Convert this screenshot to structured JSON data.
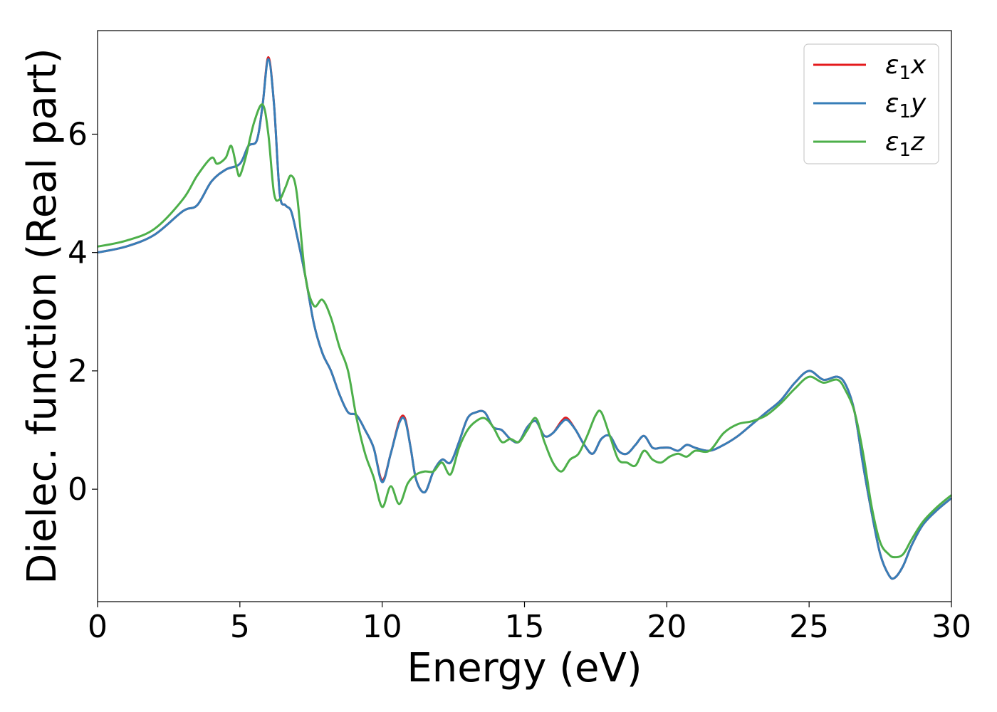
{
  "chart_data": {
    "type": "line",
    "title": "",
    "xlabel": "Energy (eV)",
    "ylabel": "Dielec. function (Real part)",
    "xlim": [
      0,
      30
    ],
    "ylim": [
      -1.9,
      7.75
    ],
    "xticks": [
      0,
      5,
      10,
      15,
      20,
      25,
      30
    ],
    "xtick_labels": [
      "0",
      "5",
      "10",
      "15",
      "20",
      "25",
      "30"
    ],
    "yticks": [
      0,
      2,
      4,
      6
    ],
    "ytick_labels": [
      "0",
      "2",
      "4",
      "6"
    ],
    "grid": false,
    "legend_position": "top-right",
    "series": [
      {
        "name": "ε₁x",
        "legend_main": "ε",
        "legend_sub": "1",
        "legend_var": "x",
        "color": "#e41a1c",
        "x": [
          0,
          1,
          2,
          3,
          3.5,
          4,
          4.5,
          5,
          5.3,
          5.6,
          5.8,
          6,
          6.2,
          6.4,
          6.6,
          6.8,
          7,
          7.3,
          7.6,
          7.9,
          8.2,
          8.5,
          8.8,
          9.1,
          9.4,
          9.7,
          10,
          10.3,
          10.6,
          10.8,
          11,
          11.2,
          11.5,
          11.8,
          12.1,
          12.4,
          12.7,
          13,
          13.3,
          13.6,
          13.9,
          14.2,
          14.5,
          14.8,
          15.1,
          15.4,
          15.7,
          16,
          16.3,
          16.5,
          16.8,
          17.1,
          17.4,
          17.7,
          18,
          18.3,
          18.6,
          18.9,
          19.2,
          19.5,
          19.8,
          20.1,
          20.4,
          20.7,
          21,
          21.5,
          22,
          22.5,
          23,
          23.5,
          24,
          24.5,
          25,
          25.5,
          26,
          26.3,
          26.6,
          26.9,
          27.2,
          27.5,
          27.8,
          28,
          28.3,
          28.6,
          29,
          29.5,
          30
        ],
        "y": [
          4.0,
          4.1,
          4.3,
          4.7,
          4.8,
          5.2,
          5.4,
          5.5,
          5.8,
          5.9,
          6.5,
          7.3,
          6.5,
          5.0,
          4.8,
          4.7,
          4.3,
          3.6,
          2.8,
          2.3,
          2.0,
          1.6,
          1.3,
          1.25,
          1.0,
          0.7,
          0.15,
          0.6,
          1.15,
          1.2,
          0.7,
          0.15,
          -0.05,
          0.3,
          0.5,
          0.45,
          0.8,
          1.2,
          1.3,
          1.3,
          1.05,
          1.0,
          0.85,
          0.8,
          1.05,
          1.15,
          0.9,
          0.95,
          1.15,
          1.2,
          1.0,
          0.75,
          0.6,
          0.85,
          0.9,
          0.65,
          0.6,
          0.75,
          0.9,
          0.7,
          0.7,
          0.7,
          0.65,
          0.75,
          0.7,
          0.65,
          0.75,
          0.9,
          1.1,
          1.3,
          1.5,
          1.8,
          2.0,
          1.85,
          1.9,
          1.75,
          1.3,
          0.4,
          -0.4,
          -1.1,
          -1.45,
          -1.5,
          -1.3,
          -0.95,
          -0.6,
          -0.35,
          -0.15
        ]
      },
      {
        "name": "ε₁y",
        "legend_main": "ε",
        "legend_sub": "1",
        "legend_var": "y",
        "color": "#377eb8",
        "x": [
          0,
          1,
          2,
          3,
          3.5,
          4,
          4.5,
          5,
          5.3,
          5.6,
          5.8,
          6,
          6.2,
          6.4,
          6.6,
          6.8,
          7,
          7.3,
          7.6,
          7.9,
          8.2,
          8.5,
          8.8,
          9.1,
          9.4,
          9.7,
          10,
          10.3,
          10.6,
          10.8,
          11,
          11.2,
          11.5,
          11.8,
          12.1,
          12.4,
          12.7,
          13,
          13.3,
          13.6,
          13.9,
          14.2,
          14.5,
          14.8,
          15.1,
          15.4,
          15.7,
          16,
          16.3,
          16.5,
          16.8,
          17.1,
          17.4,
          17.7,
          18,
          18.3,
          18.6,
          18.9,
          19.2,
          19.5,
          19.8,
          20.1,
          20.4,
          20.7,
          21,
          21.5,
          22,
          22.5,
          23,
          23.5,
          24,
          24.5,
          25,
          25.5,
          26,
          26.3,
          26.6,
          26.9,
          27.2,
          27.5,
          27.8,
          28,
          28.3,
          28.6,
          29,
          29.5,
          30
        ],
        "y": [
          4.0,
          4.1,
          4.3,
          4.7,
          4.8,
          5.2,
          5.4,
          5.5,
          5.8,
          5.9,
          6.5,
          7.27,
          6.5,
          5.0,
          4.8,
          4.7,
          4.3,
          3.6,
          2.8,
          2.3,
          2.0,
          1.6,
          1.3,
          1.25,
          1.0,
          0.7,
          0.12,
          0.6,
          1.12,
          1.17,
          0.7,
          0.15,
          -0.05,
          0.3,
          0.5,
          0.45,
          0.8,
          1.2,
          1.3,
          1.3,
          1.05,
          1.0,
          0.85,
          0.8,
          1.05,
          1.15,
          0.9,
          0.95,
          1.12,
          1.17,
          1.0,
          0.75,
          0.6,
          0.85,
          0.9,
          0.65,
          0.6,
          0.75,
          0.9,
          0.7,
          0.7,
          0.7,
          0.65,
          0.75,
          0.7,
          0.65,
          0.75,
          0.9,
          1.1,
          1.3,
          1.5,
          1.8,
          2.0,
          1.85,
          1.9,
          1.75,
          1.3,
          0.4,
          -0.4,
          -1.1,
          -1.45,
          -1.5,
          -1.3,
          -0.95,
          -0.6,
          -0.35,
          -0.15
        ]
      },
      {
        "name": "ε₁z",
        "legend_main": "ε",
        "legend_sub": "1",
        "legend_var": "z",
        "color": "#4daf4a",
        "x": [
          0,
          1,
          2,
          3,
          3.5,
          4,
          4.2,
          4.5,
          4.7,
          4.9,
          5,
          5.2,
          5.5,
          5.8,
          6,
          6.2,
          6.4,
          6.6,
          6.8,
          7,
          7.3,
          7.6,
          7.9,
          8.2,
          8.5,
          8.8,
          9.1,
          9.4,
          9.7,
          10,
          10.3,
          10.6,
          10.9,
          11.2,
          11.5,
          11.8,
          12.1,
          12.4,
          12.7,
          13,
          13.3,
          13.6,
          13.9,
          14.2,
          14.5,
          14.8,
          15.1,
          15.4,
          15.7,
          16,
          16.3,
          16.6,
          16.9,
          17.2,
          17.5,
          17.7,
          18,
          18.3,
          18.6,
          18.9,
          19.2,
          19.5,
          19.8,
          20.1,
          20.4,
          20.7,
          21,
          21.5,
          22,
          22.5,
          23,
          23.5,
          24,
          24.5,
          25,
          25.5,
          26,
          26.3,
          26.6,
          26.9,
          27.2,
          27.5,
          27.8,
          28,
          28.3,
          28.6,
          29,
          29.5,
          30
        ],
        "y": [
          4.1,
          4.2,
          4.4,
          4.9,
          5.3,
          5.6,
          5.5,
          5.6,
          5.8,
          5.4,
          5.3,
          5.6,
          6.2,
          6.5,
          6.0,
          5.0,
          4.9,
          5.1,
          5.3,
          5.0,
          3.6,
          3.1,
          3.2,
          2.9,
          2.4,
          2.0,
          1.2,
          0.6,
          0.2,
          -0.3,
          0.05,
          -0.25,
          0.1,
          0.25,
          0.3,
          0.3,
          0.45,
          0.25,
          0.7,
          1.0,
          1.15,
          1.2,
          1.05,
          0.8,
          0.85,
          0.8,
          1.0,
          1.2,
          0.8,
          0.45,
          0.3,
          0.5,
          0.6,
          0.9,
          1.25,
          1.3,
          0.9,
          0.5,
          0.45,
          0.4,
          0.65,
          0.5,
          0.45,
          0.55,
          0.6,
          0.55,
          0.65,
          0.65,
          0.95,
          1.1,
          1.15,
          1.25,
          1.45,
          1.7,
          1.9,
          1.8,
          1.85,
          1.65,
          1.3,
          0.6,
          -0.3,
          -0.9,
          -1.1,
          -1.15,
          -1.1,
          -0.85,
          -0.55,
          -0.3,
          -0.1
        ]
      }
    ]
  }
}
